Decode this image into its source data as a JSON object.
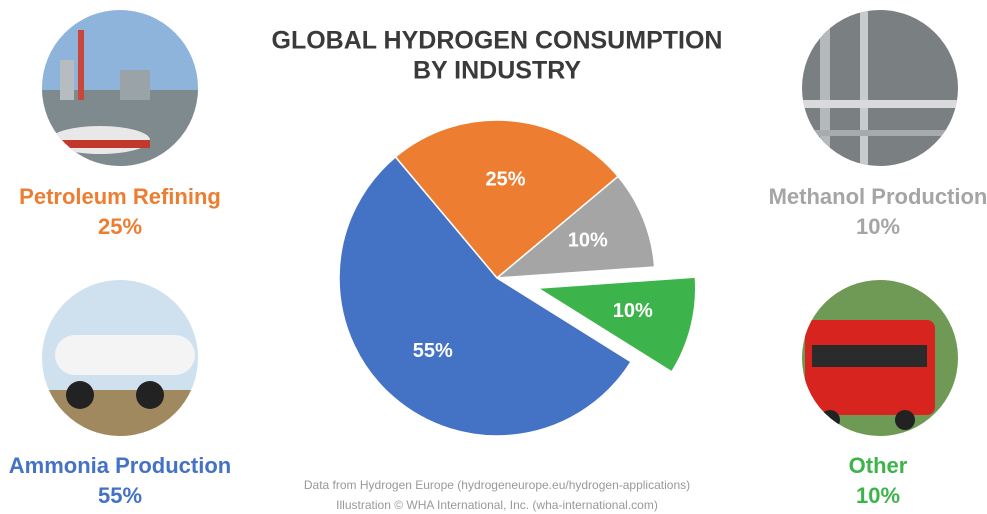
{
  "chart_data": {
    "type": "pie",
    "title": [
      "GLOBAL HYDROGEN CONSUMPTION",
      "BY INDUSTRY"
    ],
    "categories": [
      "Petroleum Refining",
      "Methanol Production",
      "Other",
      "Ammonia Production"
    ],
    "values": [
      25,
      10,
      10,
      55
    ],
    "value_labels": [
      "25%",
      "10%",
      "10%",
      "55%"
    ],
    "colors": [
      "#ed7d31",
      "#a5a5a5",
      "#3cb44b",
      "#4472c4"
    ],
    "label_colors": [
      "#ed7d31",
      "#a5a5a5",
      "#3cb44b",
      "#4472c4"
    ],
    "exploded": [
      false,
      false,
      true,
      false
    ],
    "source": [
      "Data from Hydrogen Europe (hydrogeneurope.eu/hydrogen-applications)",
      "Illustration © WHA International, Inc. (wha-international.com)"
    ]
  }
}
